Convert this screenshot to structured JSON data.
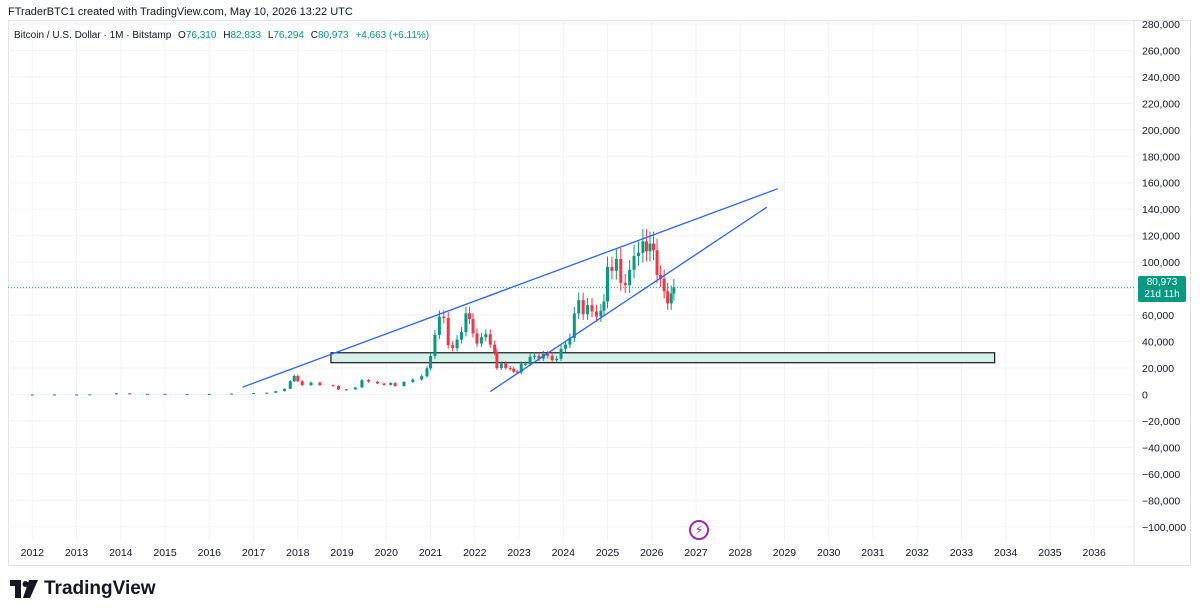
{
  "attribution": "FTraderBTC1 created with TradingView.com, May 10, 2026 13:22 UTC",
  "legend": {
    "symbol": "Bitcoin / U.S. Dollar · 1M · Bitstamp",
    "open_label": "O",
    "open": "76,310",
    "high_label": "H",
    "high": "82,833",
    "low_label": "L",
    "low": "76,294",
    "close_label": "C",
    "close": "80,973",
    "change": "+4,663 (+6.11%)"
  },
  "price_tag": {
    "price": "80,973",
    "countdown": "21d 11h"
  },
  "brand": "TradingView",
  "colors": {
    "up": "#089981",
    "down": "#f23645",
    "trendline": "#2962ff",
    "zone_fill": "#d8f1e8",
    "zone_border": "#131722",
    "last_price": "#089981",
    "grid": "#f0f3fa"
  },
  "chart_data": {
    "type": "candlestick",
    "symbol": "Bitcoin / U.S. Dollar",
    "interval": "1M",
    "exchange": "Bitstamp",
    "x_ticks": [
      "2012",
      "2013",
      "2014",
      "2015",
      "2016",
      "2017",
      "2018",
      "2019",
      "2020",
      "2021",
      "2022",
      "2023",
      "2024",
      "2025",
      "2026",
      "2027",
      "2028",
      "2029",
      "2030",
      "2031",
      "2032",
      "2033",
      "2034",
      "2035",
      "2036"
    ],
    "y_ticks": [
      "280,000",
      "260,000",
      "240,000",
      "220,000",
      "200,000",
      "180,000",
      "160,000",
      "140,000",
      "120,000",
      "100,000",
      "80,000",
      "60,000",
      "40,000",
      "20,000",
      "0",
      "−20,000",
      "−40,000",
      "−60,000",
      "−80,000",
      "−100,000"
    ],
    "ylim": [
      -110000,
      283000
    ],
    "xlim": [
      2011.45,
      2036.9
    ],
    "last_price": 80973,
    "series": [
      {
        "x": 2011.5,
        "v": 5
      },
      {
        "x": 2012.0,
        "v": 6
      },
      {
        "x": 2012.5,
        "v": 8
      },
      {
        "x": 2013.0,
        "v": 13
      },
      {
        "x": 2013.3,
        "v": 100
      },
      {
        "x": 2013.9,
        "v": 900
      },
      {
        "x": 2014.2,
        "v": 500
      },
      {
        "x": 2014.6,
        "v": 500
      },
      {
        "x": 2015.0,
        "v": 250
      },
      {
        "x": 2015.5,
        "v": 260
      },
      {
        "x": 2016.0,
        "v": 400
      },
      {
        "x": 2016.5,
        "v": 650
      },
      {
        "x": 2017.0,
        "v": 1000
      },
      {
        "x": 2017.3,
        "v": 1300
      },
      {
        "x": 2017.5,
        "v": 2500
      },
      {
        "x": 2017.7,
        "v": 4300
      },
      {
        "x": 2017.83,
        "v": 10000
      },
      {
        "x": 2017.92,
        "v": 14000
      },
      {
        "x": 2018.0,
        "v": 10000
      },
      {
        "x": 2018.1,
        "v": 7000
      },
      {
        "x": 2018.3,
        "v": 9000
      },
      {
        "x": 2018.5,
        "v": 7000
      },
      {
        "x": 2018.8,
        "v": 6400
      },
      {
        "x": 2018.92,
        "v": 3700
      },
      {
        "x": 2019.1,
        "v": 3800
      },
      {
        "x": 2019.3,
        "v": 5300
      },
      {
        "x": 2019.45,
        "v": 10800
      },
      {
        "x": 2019.6,
        "v": 9600
      },
      {
        "x": 2019.8,
        "v": 8300
      },
      {
        "x": 2019.95,
        "v": 7200
      },
      {
        "x": 2020.1,
        "v": 8600
      },
      {
        "x": 2020.2,
        "v": 6400
      },
      {
        "x": 2020.4,
        "v": 9400
      },
      {
        "x": 2020.6,
        "v": 11300
      },
      {
        "x": 2020.8,
        "v": 13800
      },
      {
        "x": 2020.92,
        "v": 19700
      },
      {
        "x": 2021.0,
        "v": 29000
      },
      {
        "x": 2021.1,
        "v": 45000
      },
      {
        "x": 2021.2,
        "v": 58800
      },
      {
        "x": 2021.3,
        "v": 57700
      },
      {
        "x": 2021.4,
        "v": 37300
      },
      {
        "x": 2021.5,
        "v": 35000
      },
      {
        "x": 2021.6,
        "v": 41500
      },
      {
        "x": 2021.7,
        "v": 47100
      },
      {
        "x": 2021.8,
        "v": 61300
      },
      {
        "x": 2021.88,
        "v": 57000
      },
      {
        "x": 2021.96,
        "v": 46200
      },
      {
        "x": 2022.05,
        "v": 38500
      },
      {
        "x": 2022.15,
        "v": 43200
      },
      {
        "x": 2022.25,
        "v": 45500
      },
      {
        "x": 2022.35,
        "v": 37700
      },
      {
        "x": 2022.45,
        "v": 31800
      },
      {
        "x": 2022.5,
        "v": 19900
      },
      {
        "x": 2022.6,
        "v": 23300
      },
      {
        "x": 2022.7,
        "v": 20000
      },
      {
        "x": 2022.8,
        "v": 19400
      },
      {
        "x": 2022.88,
        "v": 17200
      },
      {
        "x": 2022.96,
        "v": 16500
      },
      {
        "x": 2023.05,
        "v": 23100
      },
      {
        "x": 2023.15,
        "v": 23100
      },
      {
        "x": 2023.25,
        "v": 28500
      },
      {
        "x": 2023.35,
        "v": 29200
      },
      {
        "x": 2023.45,
        "v": 27200
      },
      {
        "x": 2023.55,
        "v": 30500
      },
      {
        "x": 2023.65,
        "v": 29200
      },
      {
        "x": 2023.75,
        "v": 26000
      },
      {
        "x": 2023.85,
        "v": 27000
      },
      {
        "x": 2023.95,
        "v": 34500
      },
      {
        "x": 2024.05,
        "v": 37700
      },
      {
        "x": 2024.15,
        "v": 42600
      },
      {
        "x": 2024.25,
        "v": 61200
      },
      {
        "x": 2024.35,
        "v": 71300
      },
      {
        "x": 2024.45,
        "v": 60600
      },
      {
        "x": 2024.55,
        "v": 67500
      },
      {
        "x": 2024.65,
        "v": 62700
      },
      {
        "x": 2024.75,
        "v": 58900
      },
      {
        "x": 2024.85,
        "v": 63300
      },
      {
        "x": 2024.92,
        "v": 70200
      },
      {
        "x": 2025.0,
        "v": 96400
      },
      {
        "x": 2025.1,
        "v": 93400
      },
      {
        "x": 2025.2,
        "v": 102400
      },
      {
        "x": 2025.3,
        "v": 84300
      },
      {
        "x": 2025.4,
        "v": 82500
      },
      {
        "x": 2025.5,
        "v": 94200
      },
      {
        "x": 2025.6,
        "v": 104600
      },
      {
        "x": 2025.7,
        "v": 107100
      },
      {
        "x": 2025.8,
        "v": 115700
      },
      {
        "x": 2025.88,
        "v": 108200
      },
      {
        "x": 2025.96,
        "v": 114000
      },
      {
        "x": 2026.04,
        "v": 109000
      },
      {
        "x": 2026.12,
        "v": 90300
      },
      {
        "x": 2026.2,
        "v": 87500
      },
      {
        "x": 2026.28,
        "v": 78000
      },
      {
        "x": 2026.36,
        "v": 68800
      },
      {
        "x": 2026.44,
        "v": 76300
      },
      {
        "x": 2026.5,
        "v": 80973
      }
    ],
    "trendlines": [
      {
        "name": "",
        "from": [
          2016.75,
          5500
        ],
        "to": [
          2028.85,
          155500
        ]
      },
      {
        "name": "",
        "from": [
          2022.35,
          2200
        ],
        "to": [
          2028.6,
          141500
        ]
      }
    ],
    "zone": {
      "x0": 2018.75,
      "x1": 2033.75,
      "y0": 24000,
      "y1": 31500
    }
  }
}
